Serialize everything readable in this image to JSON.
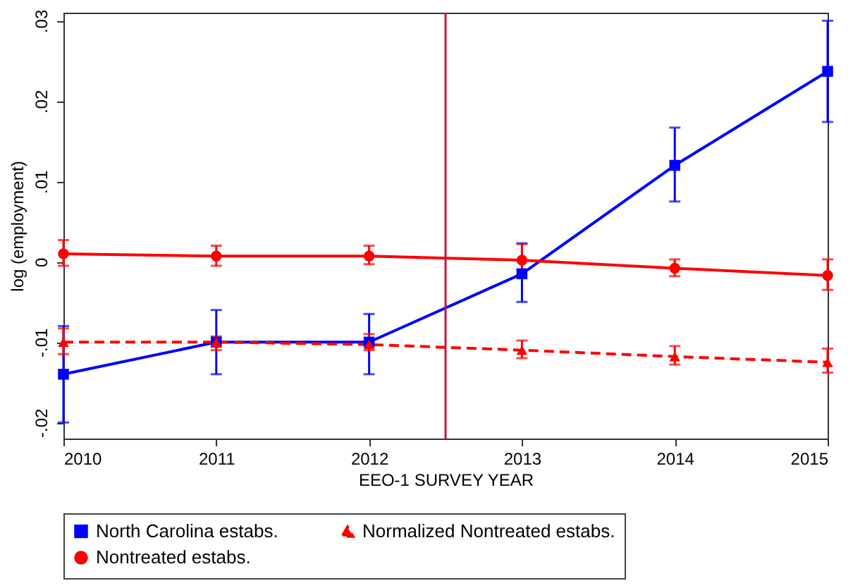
{
  "chart_data": {
    "type": "line",
    "xlabel": "EEO-1 SURVEY YEAR",
    "ylabel": "log (employment)",
    "x": [
      2010,
      2011,
      2012,
      2013,
      2014,
      2015
    ],
    "series": [
      {
        "name": "North Carolina estabs.",
        "color": "#0000ff",
        "marker": "square",
        "line_style": "solid",
        "values": [
          -0.014,
          -0.01,
          -0.01,
          -0.0015,
          0.012,
          0.0237
        ],
        "errors": [
          [
            -0.02,
            -0.008
          ],
          [
            -0.014,
            -0.006
          ],
          [
            -0.014,
            -0.0065
          ],
          [
            -0.005,
            0.0023
          ],
          [
            0.0075,
            0.0167
          ],
          [
            0.0174,
            0.03
          ]
        ]
      },
      {
        "name": "Normalized Nontreated estabs.",
        "color": "#ff0000",
        "marker": "triangle",
        "line_style": "dashed",
        "values": [
          -0.01,
          -0.01,
          -0.0103,
          -0.011,
          -0.0118,
          -0.0125
        ],
        "errors": [
          [
            -0.0115,
            -0.0083
          ],
          [
            -0.011,
            -0.0093
          ],
          [
            -0.011,
            -0.009
          ],
          [
            -0.012,
            -0.0098
          ],
          [
            -0.0128,
            -0.0105
          ],
          [
            -0.0138,
            -0.0108
          ]
        ]
      },
      {
        "name": "Nontreated estabs.",
        "color": "#ff0000",
        "marker": "circle",
        "line_style": "solid",
        "values": [
          0.001,
          0.0007,
          0.0007,
          0.0002,
          -0.0008,
          -0.0017
        ],
        "errors": [
          [
            -0.0005,
            0.0027
          ],
          [
            -0.0005,
            0.002
          ],
          [
            -0.0003,
            0.002
          ],
          [
            -0.001,
            0.0022
          ],
          [
            -0.0018,
            0.0003
          ],
          [
            -0.0035,
            0.0003
          ]
        ]
      }
    ],
    "xlim": [
      2010,
      2015
    ],
    "xticks": [
      2010,
      2011,
      2012,
      2013,
      2014,
      2015
    ],
    "ylim": [
      -0.022,
      0.031
    ],
    "yticks": [
      {
        "value": -0.02,
        "label": "-.02"
      },
      {
        "value": -0.01,
        "label": "-.01"
      },
      0,
      {
        "value": 0.01,
        "label": ".01"
      },
      {
        "value": 0.02,
        "label": ".02"
      },
      {
        "value": 0.03,
        "label": ".03"
      }
    ],
    "ref_lines": [
      {
        "axis": "x",
        "value": 2012.5,
        "label": null,
        "color": "#c8143c"
      }
    ],
    "grid": false,
    "legend": "bottom"
  }
}
